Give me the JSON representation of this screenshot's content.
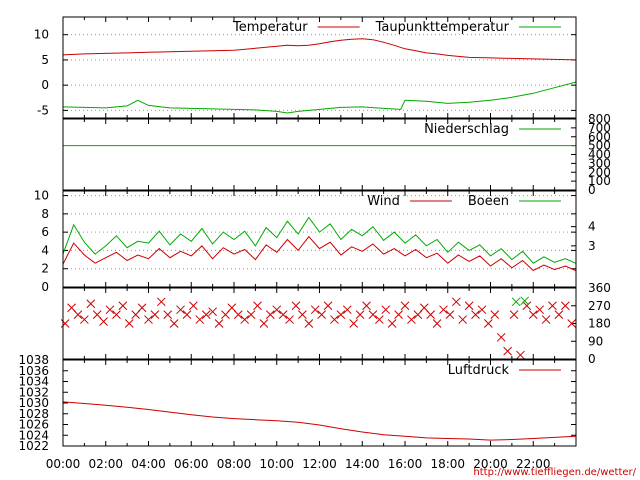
{
  "chart_data": [
    {
      "type": "line",
      "panel": "temperature",
      "ylim": [
        -6.5,
        13.5
      ],
      "yticks": [
        "10",
        "5",
        "0",
        "-5"
      ],
      "ytick_values": [
        10,
        5,
        0,
        -5
      ],
      "grid": "horizontal-dotted",
      "legend_placement": "top-right",
      "series": [
        {
          "name": "Temperatur",
          "color": "#cc0000",
          "x": [
            0,
            1,
            2,
            3,
            4,
            5,
            6,
            7,
            8,
            9,
            10,
            10.5,
            11,
            11.5,
            12,
            12.5,
            13,
            13.5,
            14,
            14.5,
            15,
            15.5,
            16,
            16.5,
            17,
            17.5,
            18,
            18.5,
            19,
            20,
            21,
            22,
            23,
            23.98
          ],
          "y": [
            6,
            6.2,
            6.3,
            6.4,
            6.5,
            6.6,
            6.7,
            6.8,
            6.9,
            7.3,
            7.7,
            7.9,
            7.8,
            7.9,
            8.2,
            8.6,
            8.9,
            9.1,
            9.2,
            9.0,
            8.5,
            7.9,
            7.2,
            6.8,
            6.4,
            6.2,
            5.9,
            5.7,
            5.5,
            5.4,
            5.3,
            5.2,
            5.1,
            5.0
          ]
        },
        {
          "name": "Taupunkttemperatur",
          "color": "#00aa00",
          "x": [
            0,
            1,
            2,
            3,
            3.5,
            4,
            5,
            6,
            7,
            8,
            9,
            10,
            10.5,
            11,
            12,
            13,
            14,
            15,
            15.8,
            16,
            17,
            18,
            19,
            20,
            21,
            22,
            23,
            23.98
          ],
          "y": [
            -4.3,
            -4.4,
            -4.5,
            -4.1,
            -3.0,
            -4.0,
            -4.5,
            -4.6,
            -4.7,
            -4.8,
            -4.9,
            -5.2,
            -5.5,
            -5.2,
            -4.8,
            -4.4,
            -4.3,
            -4.6,
            -4.8,
            -3.0,
            -3.2,
            -3.6,
            -3.4,
            -3.0,
            -2.4,
            -1.6,
            -0.5,
            0.6
          ]
        }
      ]
    },
    {
      "type": "line",
      "panel": "precipitation",
      "ylim": [
        0,
        800
      ],
      "yticks_right": [
        "800",
        "700",
        "600",
        "500",
        "400",
        "300",
        "200",
        "100",
        "0"
      ],
      "ytick_values": [
        800,
        700,
        600,
        500,
        400,
        300,
        200,
        100,
        0
      ],
      "legend_placement": "top-right",
      "series": [
        {
          "name": "Niederschlag",
          "color": "#00aa00",
          "x": [
            0,
            23.98
          ],
          "y": [
            500,
            500
          ]
        }
      ]
    },
    {
      "type": "line",
      "panel": "wind",
      "ylim": [
        0,
        10.5
      ],
      "yticks": [
        "10",
        "8",
        "6",
        "4",
        "2",
        "0"
      ],
      "ytick_values": [
        10,
        8,
        6,
        4,
        2,
        0
      ],
      "yticks_right": [
        "4",
        "3"
      ],
      "ytick_right_values": [
        6.6,
        4.5
      ],
      "grid": "horizontal-dotted",
      "legend_placement": "top-right",
      "series": [
        {
          "name": "Wind",
          "color": "#cc0000",
          "x": [
            0,
            0.5,
            1,
            1.5,
            2,
            2.5,
            3,
            3.5,
            4,
            4.5,
            5,
            5.5,
            6,
            6.5,
            7,
            7.5,
            8,
            8.5,
            9,
            9.5,
            10,
            10.5,
            11,
            11.5,
            12,
            12.5,
            13,
            13.5,
            14,
            14.5,
            15,
            15.5,
            16,
            16.5,
            17,
            17.5,
            18,
            18.5,
            19,
            19.5,
            20,
            20.5,
            21,
            21.5,
            22,
            22.5,
            23,
            23.5,
            23.98
          ],
          "y": [
            2.5,
            4.8,
            3.5,
            2.6,
            3.2,
            3.8,
            2.9,
            3.5,
            3.1,
            4.2,
            3.2,
            3.9,
            3.4,
            4.5,
            3.1,
            4.3,
            3.6,
            4.1,
            3.0,
            4.6,
            3.8,
            5.2,
            4.0,
            5.5,
            4.2,
            4.9,
            3.5,
            4.4,
            3.9,
            4.7,
            3.6,
            4.2,
            3.4,
            4.1,
            3.2,
            3.7,
            2.6,
            3.5,
            2.8,
            3.4,
            2.3,
            3.1,
            2.1,
            2.9,
            1.8,
            2.4,
            1.9,
            2.3,
            1.8
          ]
        },
        {
          "name": "Boeen",
          "color": "#00aa00",
          "x": [
            0,
            0.5,
            1,
            1.5,
            2,
            2.5,
            3,
            3.5,
            4,
            4.5,
            5,
            5.5,
            6,
            6.5,
            7,
            7.5,
            8,
            8.5,
            9,
            9.5,
            10,
            10.5,
            11,
            11.5,
            12,
            12.5,
            13,
            13.5,
            14,
            14.5,
            15,
            15.5,
            16,
            16.5,
            17,
            17.5,
            18,
            18.5,
            19,
            19.5,
            20,
            20.5,
            21,
            21.5,
            22,
            22.5,
            23,
            23.5,
            23.98
          ],
          "y": [
            3.6,
            6.8,
            4.9,
            3.6,
            4.5,
            5.6,
            4.3,
            5.0,
            4.8,
            6.1,
            4.6,
            5.8,
            5.0,
            6.4,
            4.7,
            6.0,
            5.2,
            6.1,
            4.5,
            6.5,
            5.4,
            7.2,
            5.8,
            7.6,
            6.0,
            6.9,
            5.2,
            6.3,
            5.6,
            6.6,
            5.1,
            6.0,
            4.8,
            5.7,
            4.5,
            5.2,
            3.8,
            4.9,
            4.0,
            4.6,
            3.4,
            4.2,
            3.0,
            3.9,
            2.6,
            3.3,
            2.7,
            3.1,
            2.6
          ]
        }
      ]
    },
    {
      "type": "scatter",
      "panel": "wind-direction",
      "ylim": [
        0,
        360
      ],
      "yticks_right": [
        "360",
        "270",
        "180",
        "90",
        "0"
      ],
      "ytick_values": [
        360,
        270,
        180,
        90,
        0
      ],
      "series": [
        {
          "name": "",
          "color": "#cc0000",
          "marker": "x",
          "x": [
            0.1,
            0.4,
            0.7,
            1.0,
            1.3,
            1.6,
            1.9,
            2.2,
            2.5,
            2.8,
            3.1,
            3.4,
            3.7,
            4.0,
            4.3,
            4.6,
            4.9,
            5.2,
            5.5,
            5.8,
            6.1,
            6.4,
            6.7,
            7.0,
            7.3,
            7.6,
            7.9,
            8.2,
            8.5,
            8.8,
            9.1,
            9.4,
            9.7,
            10.0,
            10.3,
            10.6,
            10.9,
            11.2,
            11.5,
            11.8,
            12.1,
            12.4,
            12.7,
            13.0,
            13.3,
            13.6,
            13.9,
            14.2,
            14.5,
            14.8,
            15.1,
            15.4,
            15.7,
            16.0,
            16.3,
            16.6,
            16.9,
            17.2,
            17.5,
            17.8,
            18.1,
            18.4,
            18.7,
            19.0,
            19.3,
            19.6,
            19.9,
            20.2,
            20.5,
            20.8,
            21.1,
            21.4,
            21.7,
            22.0,
            22.3,
            22.6,
            22.9,
            23.2,
            23.5,
            23.8
          ],
          "y": [
            180,
            260,
            225,
            200,
            280,
            225,
            190,
            250,
            225,
            270,
            180,
            225,
            260,
            200,
            225,
            290,
            225,
            180,
            250,
            225,
            270,
            200,
            225,
            240,
            180,
            225,
            260,
            225,
            200,
            225,
            270,
            180,
            225,
            250,
            225,
            200,
            270,
            225,
            180,
            250,
            225,
            270,
            200,
            225,
            250,
            180,
            225,
            270,
            225,
            200,
            250,
            180,
            225,
            270,
            200,
            225,
            260,
            225,
            180,
            250,
            225,
            290,
            200,
            270,
            225,
            250,
            180,
            225,
            110,
            40,
            225,
            20,
            270,
            225,
            250,
            200,
            270,
            225,
            270,
            180
          ]
        },
        {
          "name": "",
          "color": "#00aa00",
          "marker": "x",
          "x": [
            21.2,
            21.6
          ],
          "y": [
            290,
            295
          ]
        }
      ]
    },
    {
      "type": "line",
      "panel": "pressure",
      "ylim": [
        1022,
        1038
      ],
      "yticks": [
        "1038",
        "1036",
        "1034",
        "1032",
        "1030",
        "1028",
        "1026",
        "1024",
        "1022"
      ],
      "ytick_values": [
        1038,
        1036,
        1034,
        1032,
        1030,
        1028,
        1026,
        1024,
        1022
      ],
      "xlim": [
        0,
        24
      ],
      "xticks": [
        "00:00",
        "02:00",
        "04:00",
        "06:00",
        "08:00",
        "10:00",
        "12:00",
        "14:00",
        "16:00",
        "18:00",
        "20:00",
        "22:00"
      ],
      "xtick_values": [
        0,
        2,
        4,
        6,
        8,
        10,
        12,
        14,
        16,
        18,
        20,
        22
      ],
      "legend_placement": "top-right",
      "series": [
        {
          "name": "Luftdruck",
          "color": "#cc0000",
          "x": [
            0,
            1,
            2,
            3,
            4,
            5,
            6,
            7,
            8,
            9,
            10,
            11,
            12,
            13,
            14,
            15,
            16,
            17,
            18,
            19,
            20,
            21,
            22,
            23,
            23.98
          ],
          "y": [
            1030.2,
            1029.9,
            1029.6,
            1029.2,
            1028.8,
            1028.3,
            1027.8,
            1027.4,
            1027.1,
            1026.9,
            1026.7,
            1026.4,
            1025.9,
            1025.2,
            1024.6,
            1024.1,
            1023.8,
            1023.5,
            1023.4,
            1023.3,
            1023.1,
            1023.2,
            1023.4,
            1023.6,
            1023.8
          ]
        }
      ]
    }
  ],
  "credit": "http://www.tiefflie­gen.de/wetter/"
}
